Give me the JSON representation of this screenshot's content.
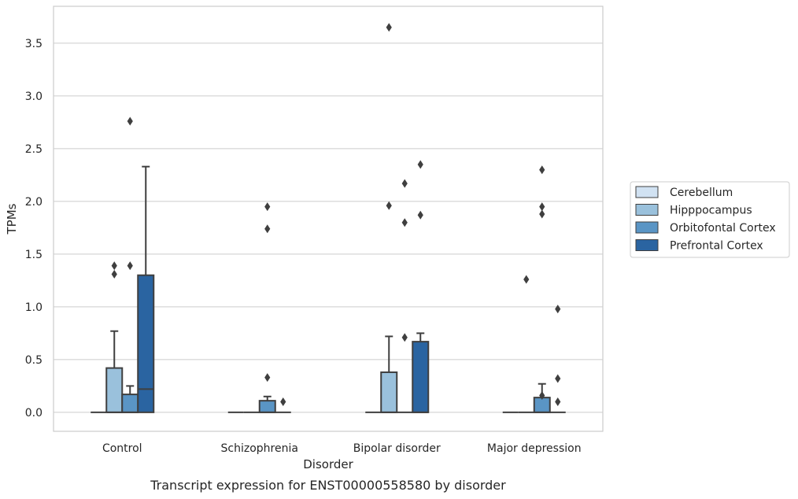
{
  "chart_data": {
    "type": "box",
    "title": "",
    "caption": "Transcript expression for ENST00000558580 by disorder",
    "xlabel": "Disorder",
    "ylabel": "TPMs",
    "ylim": [
      -0.18,
      3.85
    ],
    "yticks": [
      0.0,
      0.5,
      1.0,
      1.5,
      2.0,
      2.5,
      3.0,
      3.5
    ],
    "ytick_labels": [
      "0.0",
      "0.5",
      "1.0",
      "1.5",
      "2.0",
      "2.5",
      "3.0",
      "3.5"
    ],
    "grid": "horizontal",
    "legend_placement": "right",
    "categories": [
      "Control",
      "Schizophrenia",
      "Bipolar disorder",
      "Major depression"
    ],
    "series": [
      {
        "name": "Cerebellum",
        "color": "#d1e2f2",
        "boxes": [
          {
            "q1": 0,
            "median": 0,
            "q3": 0,
            "whisker_low": 0,
            "whisker_high": 0,
            "outliers": []
          },
          {
            "q1": 0,
            "median": 0,
            "q3": 0,
            "whisker_low": 0,
            "whisker_high": 0,
            "outliers": []
          },
          {
            "q1": 0,
            "median": 0,
            "q3": 0,
            "whisker_low": 0,
            "whisker_high": 0,
            "outliers": []
          },
          {
            "q1": 0,
            "median": 0,
            "q3": 0,
            "whisker_low": 0,
            "whisker_high": 0,
            "outliers": []
          }
        ]
      },
      {
        "name": "Hipppocampus",
        "color": "#9ac1dc",
        "boxes": [
          {
            "q1": 0,
            "median": 0,
            "q3": 0.42,
            "whisker_low": 0,
            "whisker_high": 0.77,
            "outliers": [
              1.31,
              1.39
            ]
          },
          {
            "q1": 0,
            "median": 0,
            "q3": 0,
            "whisker_low": 0,
            "whisker_high": 0,
            "outliers": []
          },
          {
            "q1": 0,
            "median": 0,
            "q3": 0.38,
            "whisker_low": 0,
            "whisker_high": 0.72,
            "outliers": [
              1.96,
              3.65
            ]
          },
          {
            "q1": 0,
            "median": 0,
            "q3": 0,
            "whisker_low": 0,
            "whisker_high": 0,
            "outliers": [
              1.26
            ]
          }
        ]
      },
      {
        "name": "Orbitofontal Cortex",
        "color": "#5a95c5",
        "boxes": [
          {
            "q1": 0,
            "median": 0,
            "q3": 0.17,
            "whisker_low": 0,
            "whisker_high": 0.25,
            "outliers": [
              1.39,
              2.76
            ]
          },
          {
            "q1": 0,
            "median": 0,
            "q3": 0.11,
            "whisker_low": 0,
            "whisker_high": 0.15,
            "outliers": [
              0.33,
              1.74,
              1.95
            ]
          },
          {
            "q1": 0,
            "median": 0,
            "q3": 0,
            "whisker_low": 0,
            "whisker_high": 0,
            "outliers": [
              0.71,
              1.8,
              2.17
            ]
          },
          {
            "q1": 0,
            "median": 0,
            "q3": 0.14,
            "whisker_low": 0,
            "whisker_high": 0.27,
            "outliers": [
              0.16,
              1.88,
              1.95,
              2.3
            ]
          }
        ]
      },
      {
        "name": "Prefrontal Cortex",
        "color": "#2a64a1",
        "boxes": [
          {
            "q1": 0,
            "median": 0.22,
            "q3": 1.3,
            "whisker_low": 0,
            "whisker_high": 2.33,
            "outliers": []
          },
          {
            "q1": 0,
            "median": 0,
            "q3": 0,
            "whisker_low": 0,
            "whisker_high": 0,
            "outliers": [
              0.1
            ]
          },
          {
            "q1": 0,
            "median": 0,
            "q3": 0.67,
            "whisker_low": 0,
            "whisker_high": 0.75,
            "outliers": [
              1.87,
              2.35
            ]
          },
          {
            "q1": 0,
            "median": 0,
            "q3": 0,
            "whisker_low": 0,
            "whisker_high": 0,
            "outliers": [
              0.1,
              0.32,
              0.98
            ]
          }
        ]
      }
    ]
  }
}
